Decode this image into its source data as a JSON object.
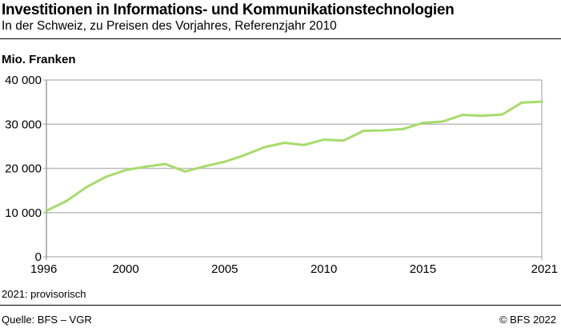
{
  "chart_data": {
    "type": "line",
    "title": "Investitionen in Informations- und Kommunikationstechnologien",
    "subtitle": "In der Schweiz, zu Preisen des Vorjahres, Referenzjahr 2010",
    "ylabel": "Mio. Franken",
    "xlabel": "",
    "x": [
      1996,
      1997,
      1998,
      1999,
      2000,
      2001,
      2002,
      2003,
      2004,
      2005,
      2006,
      2007,
      2008,
      2009,
      2010,
      2011,
      2012,
      2013,
      2014,
      2015,
      2016,
      2017,
      2018,
      2019,
      2020,
      2021
    ],
    "series": [
      {
        "values": [
          10400,
          12600,
          15700,
          18100,
          19600,
          20400,
          21000,
          19300,
          20500,
          21500,
          23000,
          24800,
          25800,
          25300,
          26500,
          26300,
          28500,
          28600,
          28900,
          30300,
          30600,
          32100,
          31900,
          32200,
          34900,
          35100
        ],
        "color": "#a6dc6a"
      }
    ],
    "xlim": [
      1996,
      2021
    ],
    "ylim": [
      0,
      40000
    ],
    "xticks": [
      "1996",
      "2000",
      "2005",
      "2010",
      "2015",
      "2021"
    ],
    "yticks": [
      "0",
      "10 000",
      "20 000",
      "30 000",
      "40 000"
    ],
    "grid": true,
    "legend": "none"
  },
  "footer": {
    "note": "2021: provisorisch",
    "source": "Quelle: BFS – VGR",
    "copyright": "© BFS 2022"
  }
}
